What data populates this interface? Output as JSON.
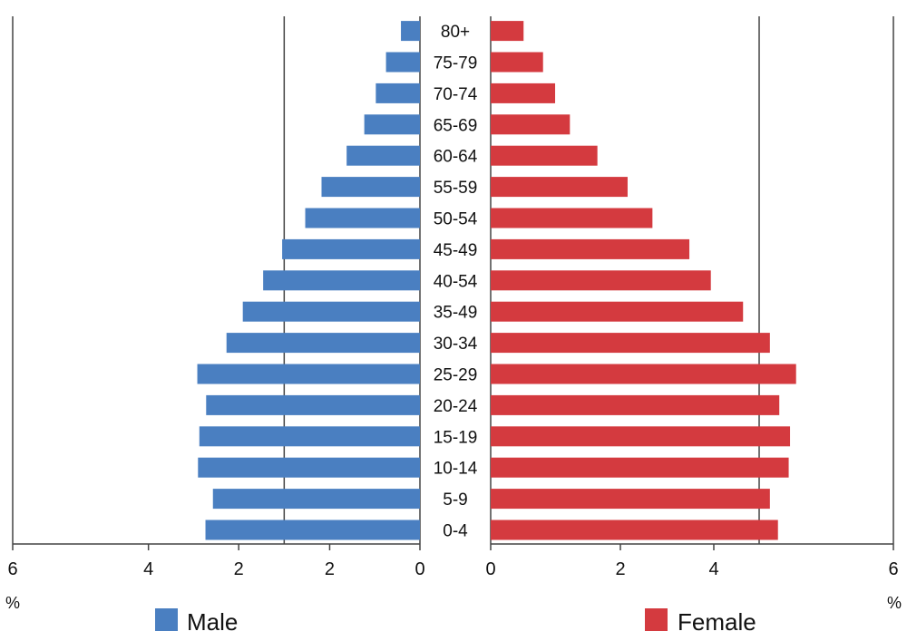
{
  "chart_data": {
    "type": "bar",
    "orientation": "horizontal",
    "subtype": "population-pyramid",
    "categories": [
      "0-4",
      "5-9",
      "10-14",
      "15-19",
      "20-24",
      "25-29",
      "30-34",
      "35-49",
      "40-54",
      "45-49",
      "50-54",
      "55-59",
      "60-64",
      "65-69",
      "70-74",
      "75-79",
      "80+"
    ],
    "series": [
      {
        "name": "Male",
        "color": "#4a7fc1",
        "side": "left",
        "values": [
          3.16,
          3.05,
          3.27,
          3.25,
          3.15,
          3.28,
          2.85,
          2.61,
          2.31,
          2.03,
          1.69,
          1.45,
          1.08,
          0.82,
          0.65,
          0.5,
          0.28
        ],
        "xlim": [
          6,
          0
        ]
      },
      {
        "name": "Female",
        "color": "#d43a3f",
        "side": "right",
        "values": [
          4.28,
          4.16,
          4.44,
          4.46,
          4.3,
          4.55,
          4.16,
          3.76,
          3.28,
          2.96,
          2.41,
          2.04,
          1.59,
          1.18,
          0.96,
          0.78,
          0.49
        ],
        "xlim": [
          0,
          6
        ]
      }
    ],
    "left_ticks": [
      "6",
      "4",
      "2",
      "2",
      "0"
    ],
    "right_ticks": [
      "0",
      "2",
      "4",
      "6"
    ],
    "unit": "%",
    "grid": true,
    "legend": [
      "Male",
      "Female"
    ],
    "legend_position": "bottom"
  }
}
